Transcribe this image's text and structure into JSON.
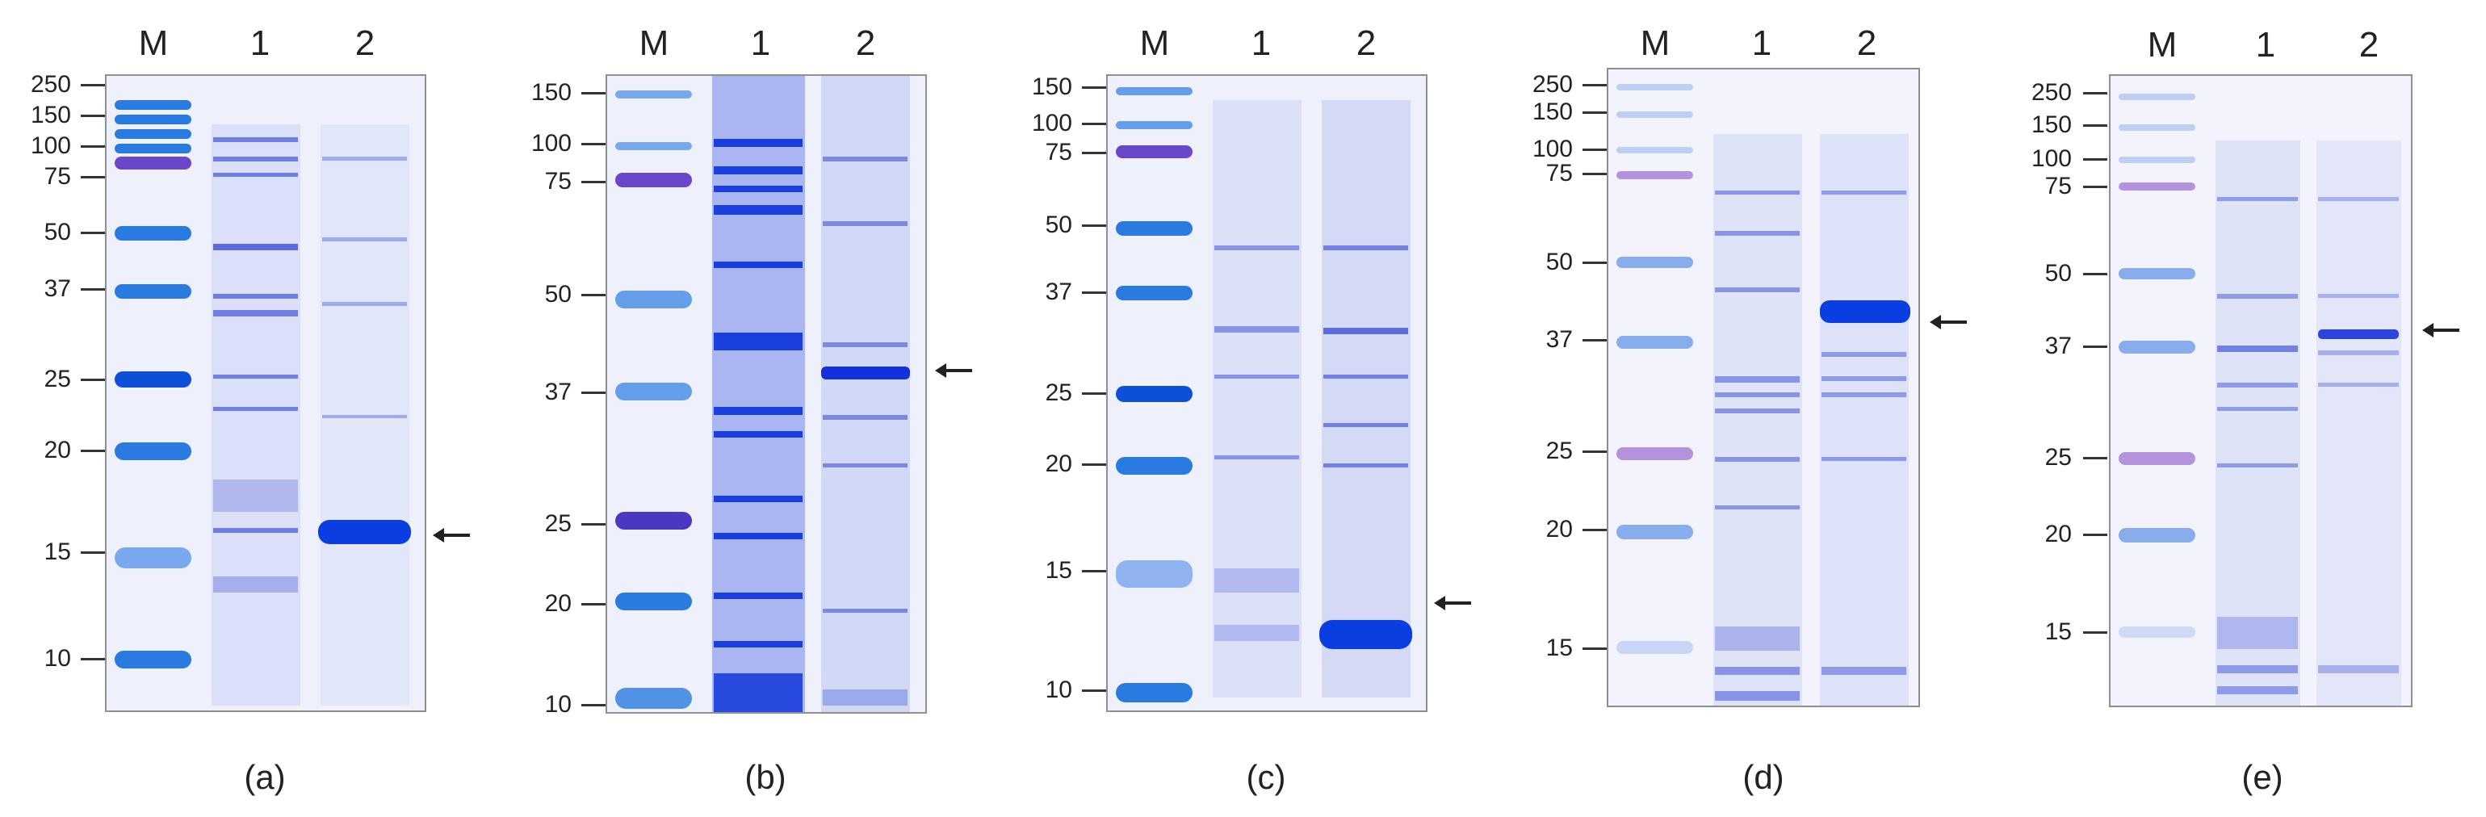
{
  "colors": {
    "gel_bg": "#eef0fb",
    "marker_blue": "#1d6fdc",
    "marker_pink": "#7a4fbf",
    "lane_blue": "#3b55d8",
    "overexpressed": "#0a3ee0"
  },
  "panels": [
    {
      "caption": "(a)",
      "lanes": [
        "M",
        "1",
        "2"
      ],
      "mw": [
        "250",
        "150",
        "100",
        "75",
        "50",
        "37",
        "25",
        "20",
        "15",
        "10"
      ]
    },
    {
      "caption": "(b)",
      "lanes": [
        "M",
        "1",
        "2"
      ],
      "mw": [
        "150",
        "100",
        "75",
        "50",
        "37",
        "25",
        "20",
        "10"
      ]
    },
    {
      "caption": "(c)",
      "lanes": [
        "M",
        "1",
        "2"
      ],
      "mw": [
        "150",
        "100",
        "75",
        "50",
        "37",
        "25",
        "20",
        "15",
        "10"
      ]
    },
    {
      "caption": "(d)",
      "lanes": [
        "M",
        "1",
        "2"
      ],
      "mw": [
        "250",
        "150",
        "100",
        "75",
        "50",
        "37",
        "25",
        "20",
        "15"
      ]
    },
    {
      "caption": "(e)",
      "lanes": [
        "M",
        "1",
        "2"
      ],
      "mw": [
        "250",
        "150",
        "100",
        "75",
        "50",
        "37",
        "25",
        "20",
        "15"
      ]
    }
  ]
}
